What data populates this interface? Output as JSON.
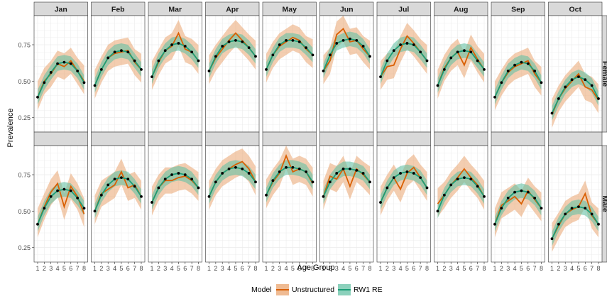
{
  "chart_data": {
    "type": "line",
    "facet_columns": [
      "Jan",
      "Feb",
      "Mar",
      "Apr",
      "May",
      "Jun",
      "Jul",
      "Aug",
      "Sep",
      "Oct"
    ],
    "facet_rows": [
      "Female",
      "Male"
    ],
    "x": [
      1,
      2,
      3,
      4,
      5,
      6,
      7,
      8
    ],
    "xlabel": "Age Group",
    "ylabel": "Prevalence",
    "ylim": [
      0.15,
      0.95
    ],
    "yticks": [
      0.25,
      0.5,
      0.75
    ],
    "grid": true,
    "legend": {
      "title": "Model",
      "position": "bottom",
      "entries": [
        "Unstructured",
        "RW1 RE"
      ]
    },
    "colors": {
      "unstructured": "#d95f02",
      "rw1": "#1b9e77",
      "unstructured_band": "#e9a46f",
      "rw1_band": "#66c2a5",
      "points": "#000000",
      "strip": "#d9d9d9"
    },
    "series": [
      {
        "name": "Unstructured",
        "panels": {
          "Female": {
            "Jan": [
              0.39,
              0.5,
              0.55,
              0.62,
              0.6,
              0.64,
              0.57,
              0.5
            ],
            "Feb": [
              0.47,
              0.58,
              0.66,
              0.69,
              0.7,
              0.71,
              0.63,
              0.58
            ],
            "Mar": [
              0.53,
              0.63,
              0.71,
              0.74,
              0.83,
              0.72,
              0.7,
              0.64
            ],
            "Apr": [
              0.57,
              0.66,
              0.72,
              0.78,
              0.83,
              0.78,
              0.73,
              0.67
            ],
            "May": [
              0.58,
              0.68,
              0.74,
              0.77,
              0.8,
              0.78,
              0.72,
              0.68
            ],
            "Jun": [
              0.57,
              0.64,
              0.82,
              0.86,
              0.77,
              0.78,
              0.72,
              0.67
            ],
            "Jul": [
              0.53,
              0.6,
              0.61,
              0.72,
              0.81,
              0.76,
              0.7,
              0.64
            ],
            "Aug": [
              0.47,
              0.59,
              0.66,
              0.7,
              0.61,
              0.73,
              0.65,
              0.58
            ],
            "Sep": [
              0.39,
              0.49,
              0.56,
              0.6,
              0.62,
              0.64,
              0.55,
              0.49
            ],
            "Oct": [
              0.27,
              0.38,
              0.45,
              0.5,
              0.55,
              0.46,
              0.44,
              0.37
            ]
          },
          "Male": {
            "Jan": [
              0.41,
              0.53,
              0.63,
              0.69,
              0.53,
              0.67,
              0.6,
              0.48
            ],
            "Feb": [
              0.5,
              0.62,
              0.65,
              0.68,
              0.77,
              0.66,
              0.68,
              0.6
            ],
            "Mar": [
              0.56,
              0.66,
              0.71,
              0.71,
              0.73,
              0.74,
              0.71,
              0.66
            ],
            "Apr": [
              0.6,
              0.7,
              0.76,
              0.79,
              0.82,
              0.84,
              0.79,
              0.7
            ],
            "May": [
              0.61,
              0.7,
              0.76,
              0.88,
              0.77,
              0.79,
              0.77,
              0.69
            ],
            "Jun": [
              0.6,
              0.74,
              0.72,
              0.79,
              0.67,
              0.79,
              0.75,
              0.7
            ],
            "Jul": [
              0.56,
              0.66,
              0.73,
              0.65,
              0.76,
              0.8,
              0.73,
              0.66
            ],
            "Aug": [
              0.55,
              0.61,
              0.68,
              0.73,
              0.79,
              0.73,
              0.68,
              0.6
            ],
            "Sep": [
              0.41,
              0.54,
              0.57,
              0.6,
              0.55,
              0.64,
              0.58,
              0.52
            ],
            "Oct": [
              0.31,
              0.4,
              0.48,
              0.51,
              0.53,
              0.62,
              0.47,
              0.41
            ]
          }
        }
      },
      {
        "name": "RW1 RE",
        "panels": {
          "Female": {
            "Jan": [
              0.39,
              0.49,
              0.56,
              0.62,
              0.63,
              0.62,
              0.57,
              0.49
            ],
            "Feb": [
              0.47,
              0.58,
              0.66,
              0.7,
              0.71,
              0.7,
              0.64,
              0.58
            ],
            "Mar": [
              0.53,
              0.64,
              0.71,
              0.75,
              0.76,
              0.74,
              0.7,
              0.64
            ],
            "Apr": [
              0.57,
              0.67,
              0.74,
              0.77,
              0.78,
              0.77,
              0.73,
              0.67
            ],
            "May": [
              0.58,
              0.68,
              0.75,
              0.78,
              0.78,
              0.77,
              0.73,
              0.68
            ],
            "Jun": [
              0.57,
              0.68,
              0.76,
              0.78,
              0.79,
              0.78,
              0.74,
              0.67
            ],
            "Jul": [
              0.53,
              0.64,
              0.71,
              0.75,
              0.76,
              0.75,
              0.7,
              0.64
            ],
            "Aug": [
              0.47,
              0.58,
              0.66,
              0.7,
              0.71,
              0.7,
              0.64,
              0.58
            ],
            "Sep": [
              0.39,
              0.49,
              0.57,
              0.61,
              0.63,
              0.62,
              0.57,
              0.49
            ],
            "Oct": [
              0.28,
              0.38,
              0.46,
              0.51,
              0.53,
              0.51,
              0.47,
              0.38
            ]
          },
          "Male": {
            "Jan": [
              0.41,
              0.52,
              0.6,
              0.64,
              0.65,
              0.64,
              0.59,
              0.52
            ],
            "Feb": [
              0.5,
              0.61,
              0.68,
              0.72,
              0.73,
              0.72,
              0.67,
              0.6
            ],
            "Mar": [
              0.56,
              0.66,
              0.72,
              0.75,
              0.76,
              0.75,
              0.72,
              0.66
            ],
            "Apr": [
              0.6,
              0.7,
              0.76,
              0.79,
              0.8,
              0.79,
              0.76,
              0.7
            ],
            "May": [
              0.61,
              0.71,
              0.77,
              0.8,
              0.8,
              0.79,
              0.77,
              0.7
            ],
            "Jun": [
              0.6,
              0.7,
              0.76,
              0.79,
              0.79,
              0.78,
              0.76,
              0.7
            ],
            "Jul": [
              0.56,
              0.66,
              0.73,
              0.76,
              0.77,
              0.76,
              0.73,
              0.66
            ],
            "Aug": [
              0.5,
              0.61,
              0.68,
              0.72,
              0.73,
              0.72,
              0.67,
              0.6
            ],
            "Sep": [
              0.41,
              0.52,
              0.59,
              0.63,
              0.64,
              0.63,
              0.59,
              0.52
            ],
            "Oct": [
              0.31,
              0.41,
              0.48,
              0.52,
              0.53,
              0.52,
              0.48,
              0.41
            ]
          }
        }
      }
    ],
    "band_halfwidth": {
      "Unstructured": 0.09,
      "RW1 RE": 0.05
    }
  }
}
